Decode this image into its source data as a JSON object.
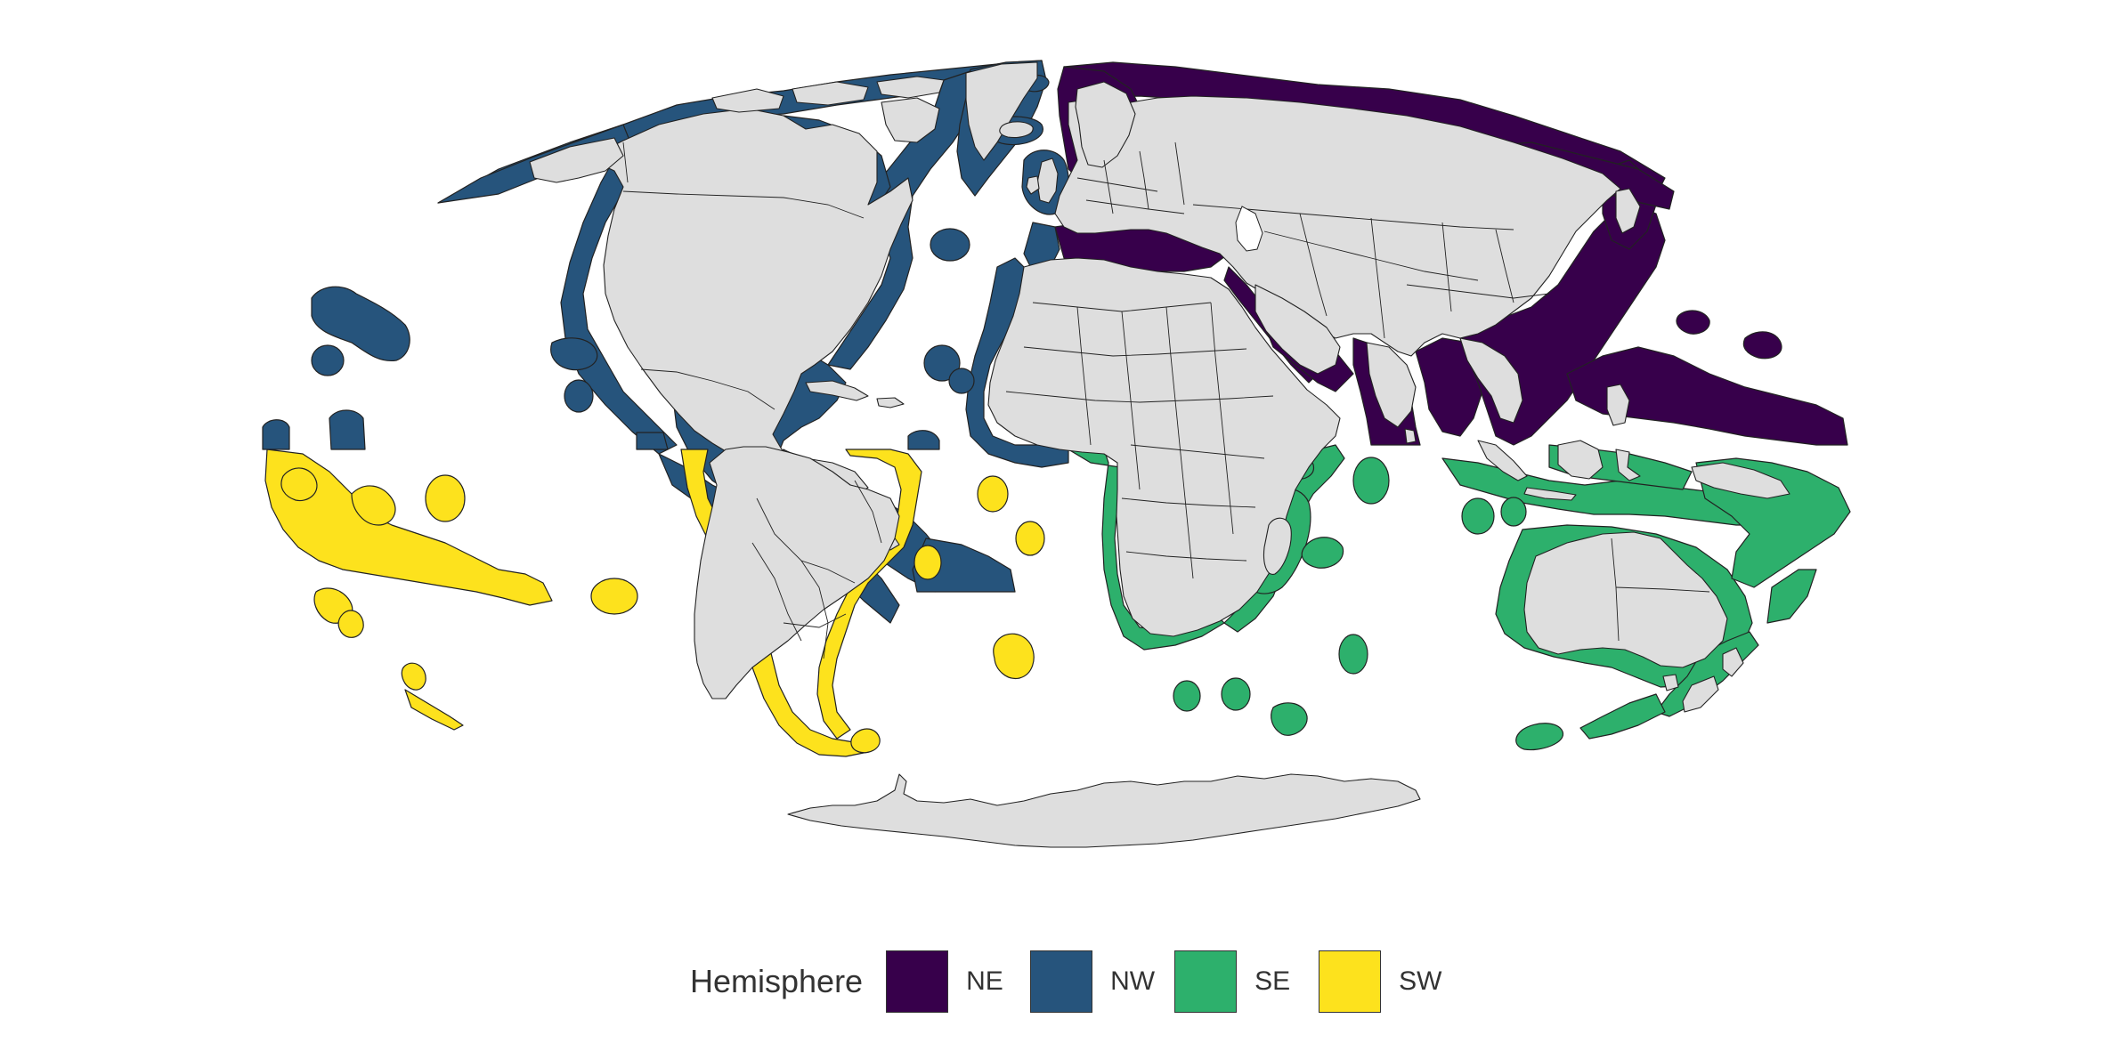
{
  "legend": {
    "title": "Hemisphere",
    "items": [
      {
        "label": "NE",
        "color": "#37004b"
      },
      {
        "label": "NW",
        "color": "#26547c"
      },
      {
        "label": "SE",
        "color": "#2db06c"
      },
      {
        "label": "SW",
        "color": "#fde21d"
      }
    ]
  },
  "map": {
    "land_color": "#dedede",
    "ocean_color": "#ffffff",
    "border_color": "#222222",
    "projection": "Winkel Tripel"
  }
}
